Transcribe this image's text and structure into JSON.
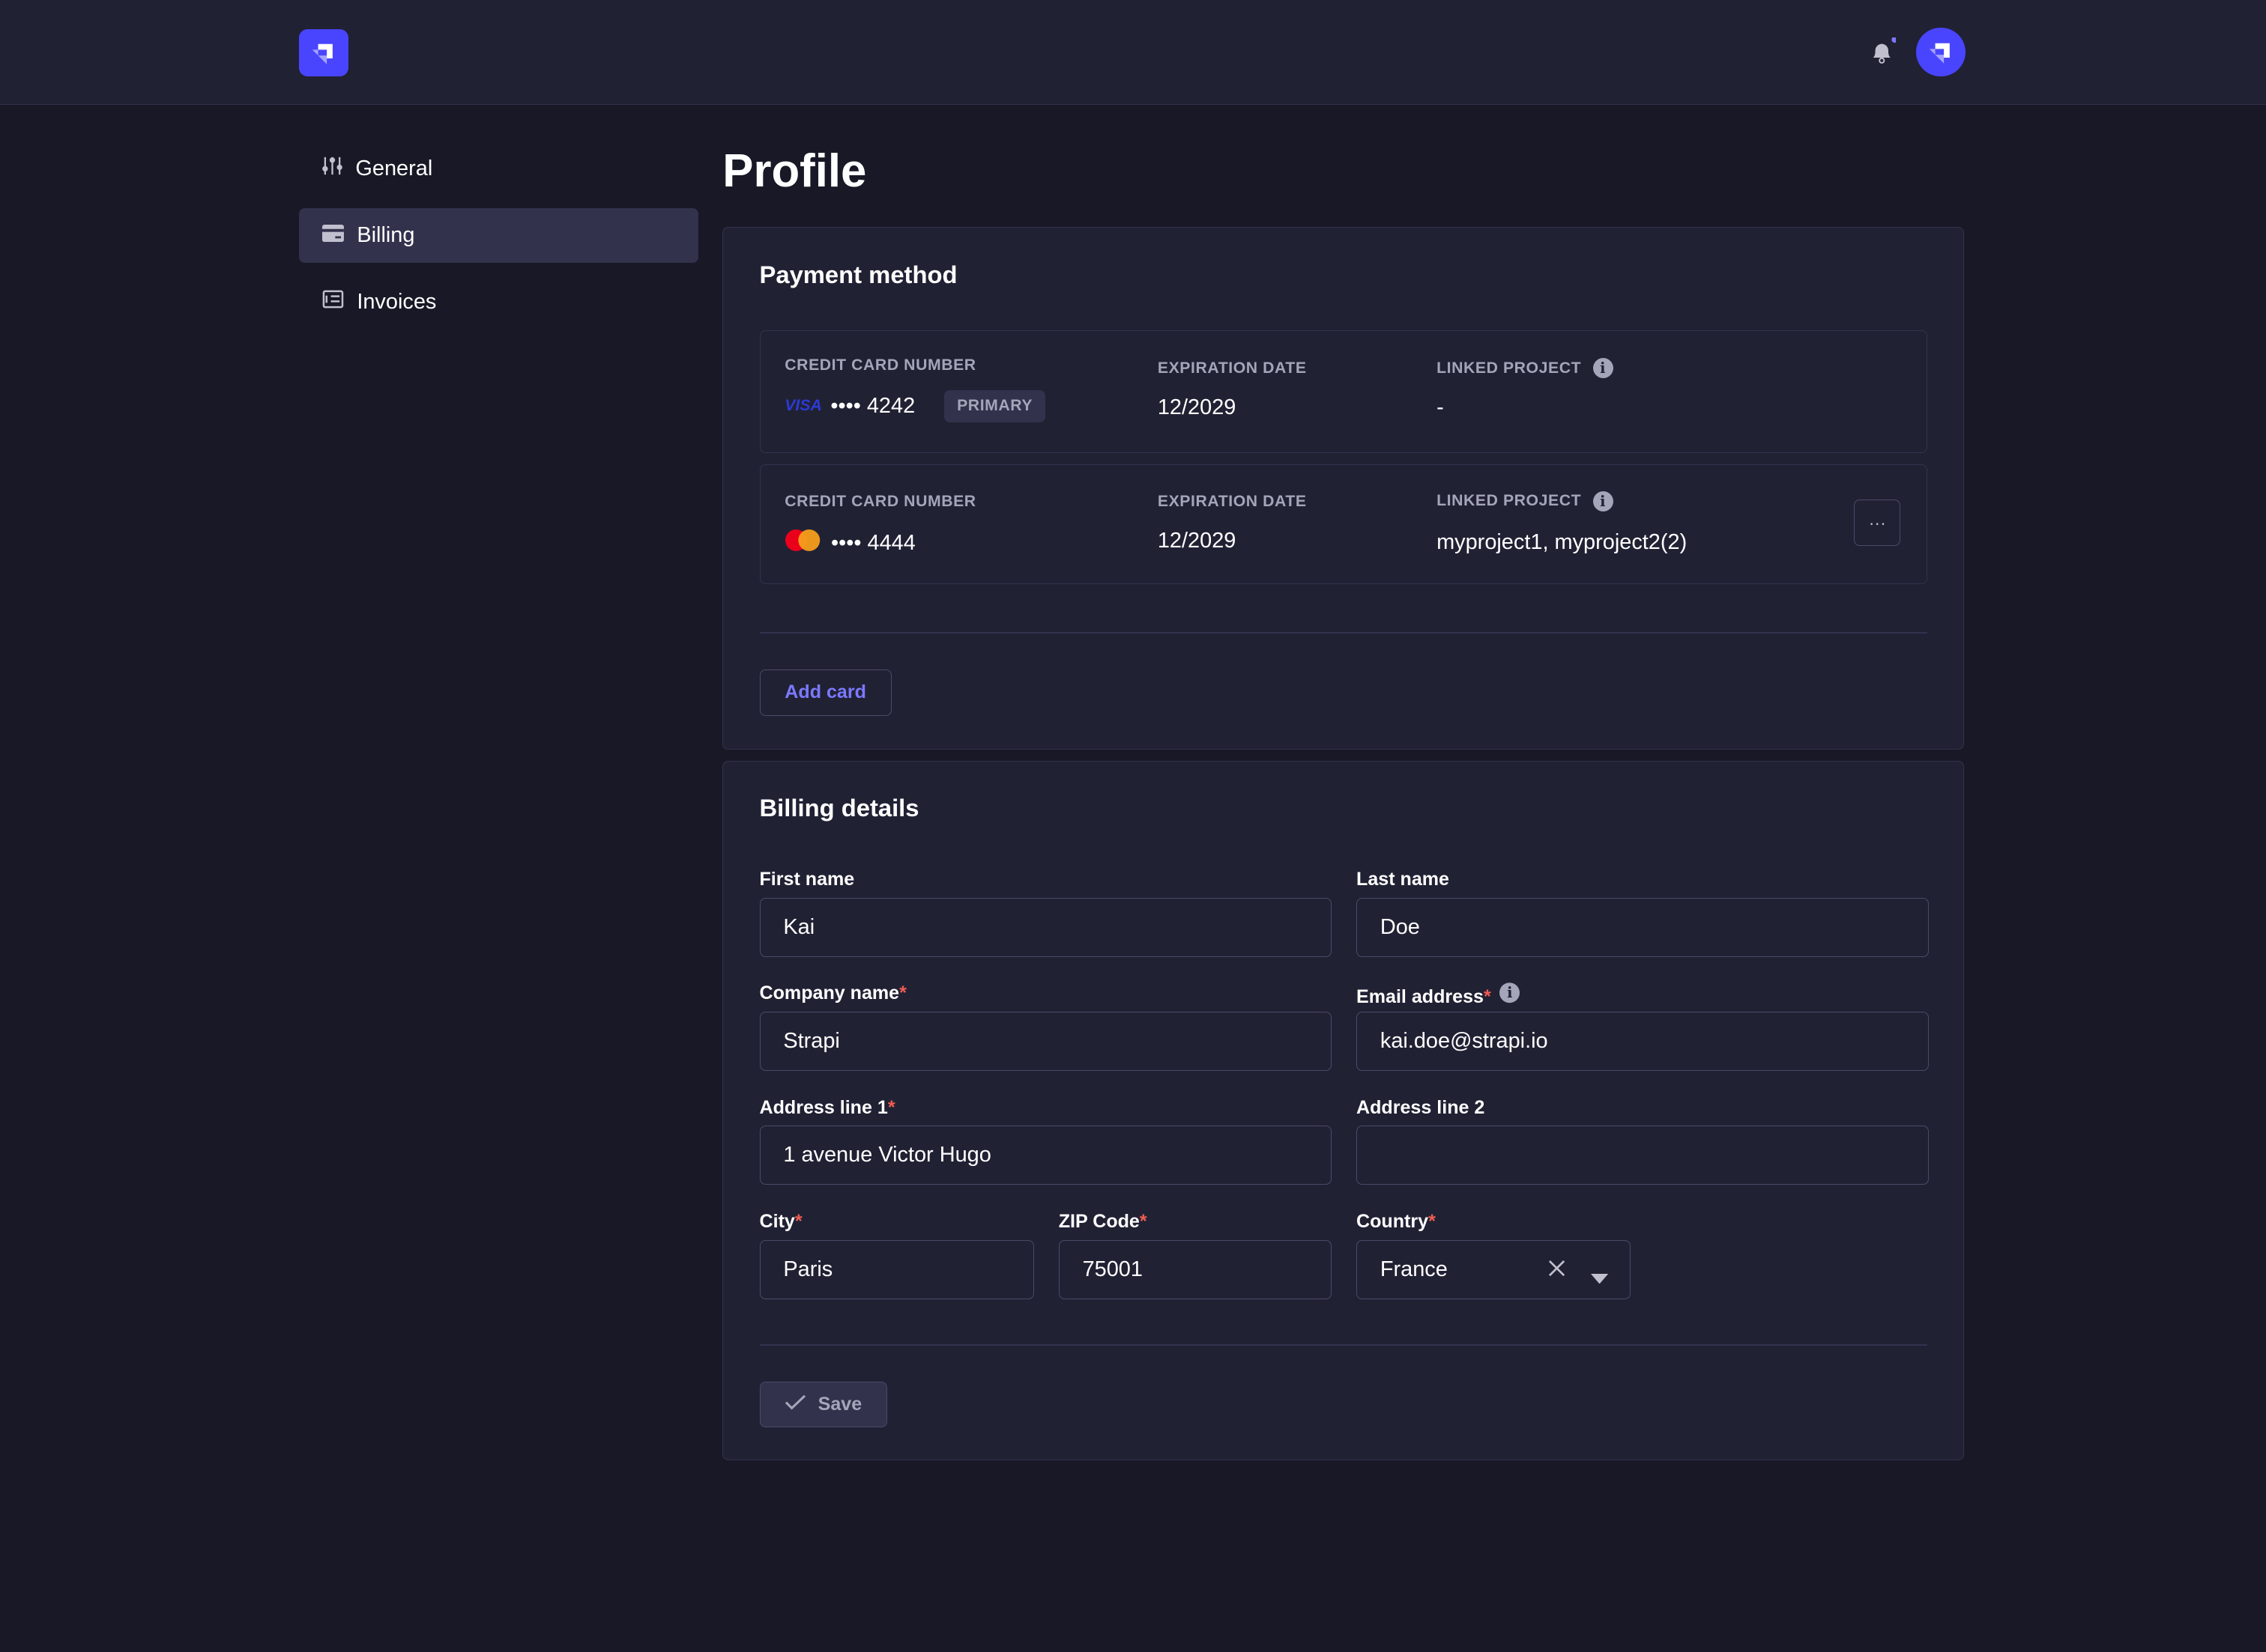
{
  "header": {
    "logo": "strapi-logo",
    "notification_dot_color": "#7b79ff"
  },
  "sidebar": {
    "items": [
      {
        "label": "General",
        "icon": "sliders-icon"
      },
      {
        "label": "Billing",
        "icon": "credit-card-icon",
        "active": true
      },
      {
        "label": "Invoices",
        "icon": "invoice-icon"
      }
    ]
  },
  "page_title": "Profile",
  "payment": {
    "title": "Payment method",
    "cards": [
      {
        "number_label": "CREDIT CARD NUMBER",
        "brand": "VISA",
        "masked": "•••• 4242",
        "badge": "PRIMARY",
        "exp_label": "EXPIRATION DATE",
        "exp": "12/2029",
        "project_label": "LINKED PROJECT",
        "project": "-"
      },
      {
        "number_label": "CREDIT CARD NUMBER",
        "brand": "mastercard",
        "masked": "•••• 4444",
        "exp_label": "EXPIRATION DATE",
        "exp": "12/2029",
        "project_label": "LINKED PROJECT",
        "project": "myproject1, myproject2(2)",
        "more": "···"
      }
    ],
    "add_card": "Add card"
  },
  "billing": {
    "title": "Billing details",
    "fields": {
      "first_name": {
        "label": "First name",
        "value": "Kai"
      },
      "last_name": {
        "label": "Last name",
        "value": "Doe"
      },
      "company": {
        "label": "Company name",
        "value": "Strapi",
        "required": true
      },
      "email": {
        "label": "Email address",
        "value": "kai.doe@strapi.io",
        "required": true
      },
      "address1": {
        "label": "Address line 1",
        "value": "1 avenue Victor Hugo",
        "required": true
      },
      "address2": {
        "label": "Address line 2",
        "value": ""
      },
      "city": {
        "label": "City",
        "value": "Paris",
        "required": true
      },
      "zip": {
        "label": "ZIP Code",
        "value": "75001",
        "required": true
      },
      "country": {
        "label": "Country",
        "value": "France",
        "required": true
      }
    },
    "required_mark": "*",
    "save": "Save"
  }
}
